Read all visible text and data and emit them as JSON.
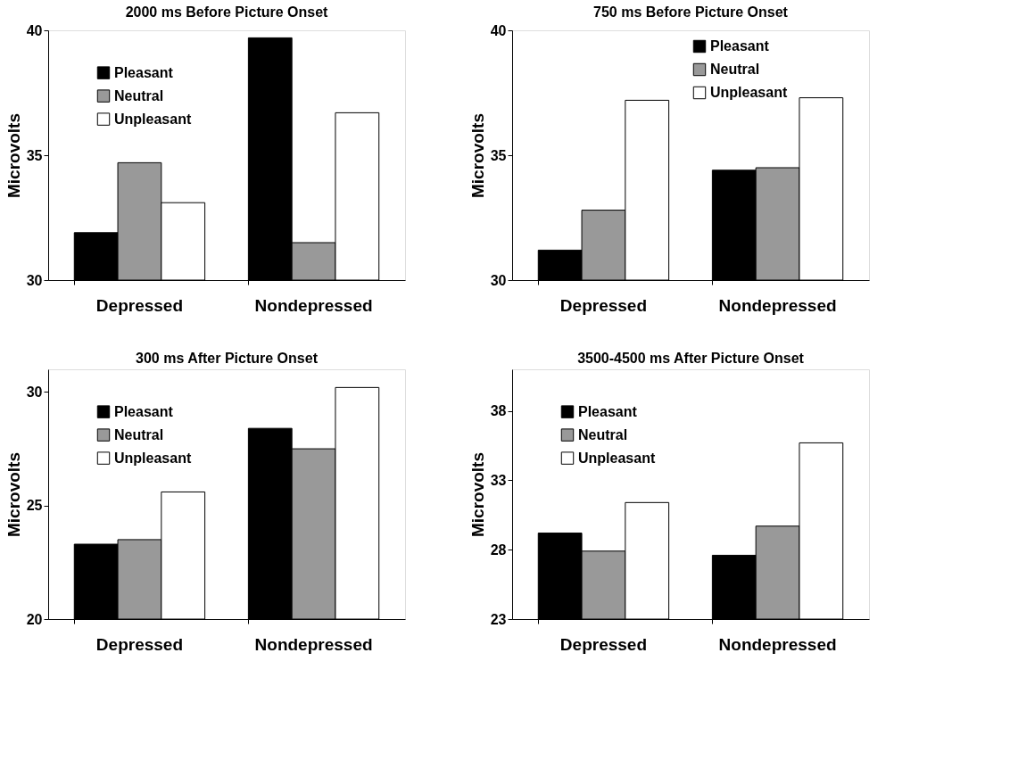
{
  "chart_data": [
    {
      "type": "bar",
      "title": "2000 ms Before Picture Onset",
      "ylabel": "Microvolts",
      "categories": [
        "Depressed",
        "Nondepressed"
      ],
      "legend": "top left",
      "ylim": [
        30,
        40
      ],
      "yticks": [
        30,
        35,
        40
      ],
      "series": [
        {
          "name": "Pleasant",
          "color": "#000000",
          "values": [
            31.9,
            39.7
          ]
        },
        {
          "name": "Neutral",
          "color": "#999999",
          "values": [
            34.7,
            31.5
          ]
        },
        {
          "name": "Unpleasant",
          "color": "#ffffff",
          "values": [
            33.1,
            36.7
          ]
        }
      ]
    },
    {
      "type": "bar",
      "title": "750 ms Before Picture Onset",
      "ylabel": "Microvolts",
      "categories": [
        "Depressed",
        "Nondepressed"
      ],
      "legend": "top right",
      "ylim": [
        30,
        40
      ],
      "yticks": [
        30,
        35,
        40
      ],
      "series": [
        {
          "name": "Pleasant",
          "color": "#000000",
          "values": [
            31.2,
            34.4
          ]
        },
        {
          "name": "Neutral",
          "color": "#999999",
          "values": [
            32.8,
            34.5
          ]
        },
        {
          "name": "Unpleasant",
          "color": "#ffffff",
          "values": [
            37.2,
            37.3
          ]
        }
      ]
    },
    {
      "type": "bar",
      "title": "300 ms After Picture Onset",
      "ylabel": "Microvolts",
      "categories": [
        "Depressed",
        "Nondepressed"
      ],
      "legend": "top left",
      "ylim": [
        20,
        31
      ],
      "yticks": [
        20,
        25,
        30
      ],
      "series": [
        {
          "name": "Pleasant",
          "color": "#000000",
          "values": [
            23.3,
            28.4
          ]
        },
        {
          "name": "Neutral",
          "color": "#999999",
          "values": [
            23.5,
            27.5
          ]
        },
        {
          "name": "Unpleasant",
          "color": "#ffffff",
          "values": [
            25.6,
            30.2
          ]
        }
      ]
    },
    {
      "type": "bar",
      "title": "3500-4500 ms After Picture Onset",
      "ylabel": "Microvolts",
      "categories": [
        "Depressed",
        "Nondepressed"
      ],
      "legend": "top left",
      "ylim": [
        23,
        41
      ],
      "yticks": [
        23,
        28,
        33,
        38
      ],
      "series": [
        {
          "name": "Pleasant",
          "color": "#000000",
          "values": [
            29.2,
            27.6
          ]
        },
        {
          "name": "Neutral",
          "color": "#999999",
          "values": [
            27.9,
            29.7
          ]
        },
        {
          "name": "Unpleasant",
          "color": "#ffffff",
          "values": [
            31.4,
            35.7
          ]
        }
      ]
    }
  ]
}
